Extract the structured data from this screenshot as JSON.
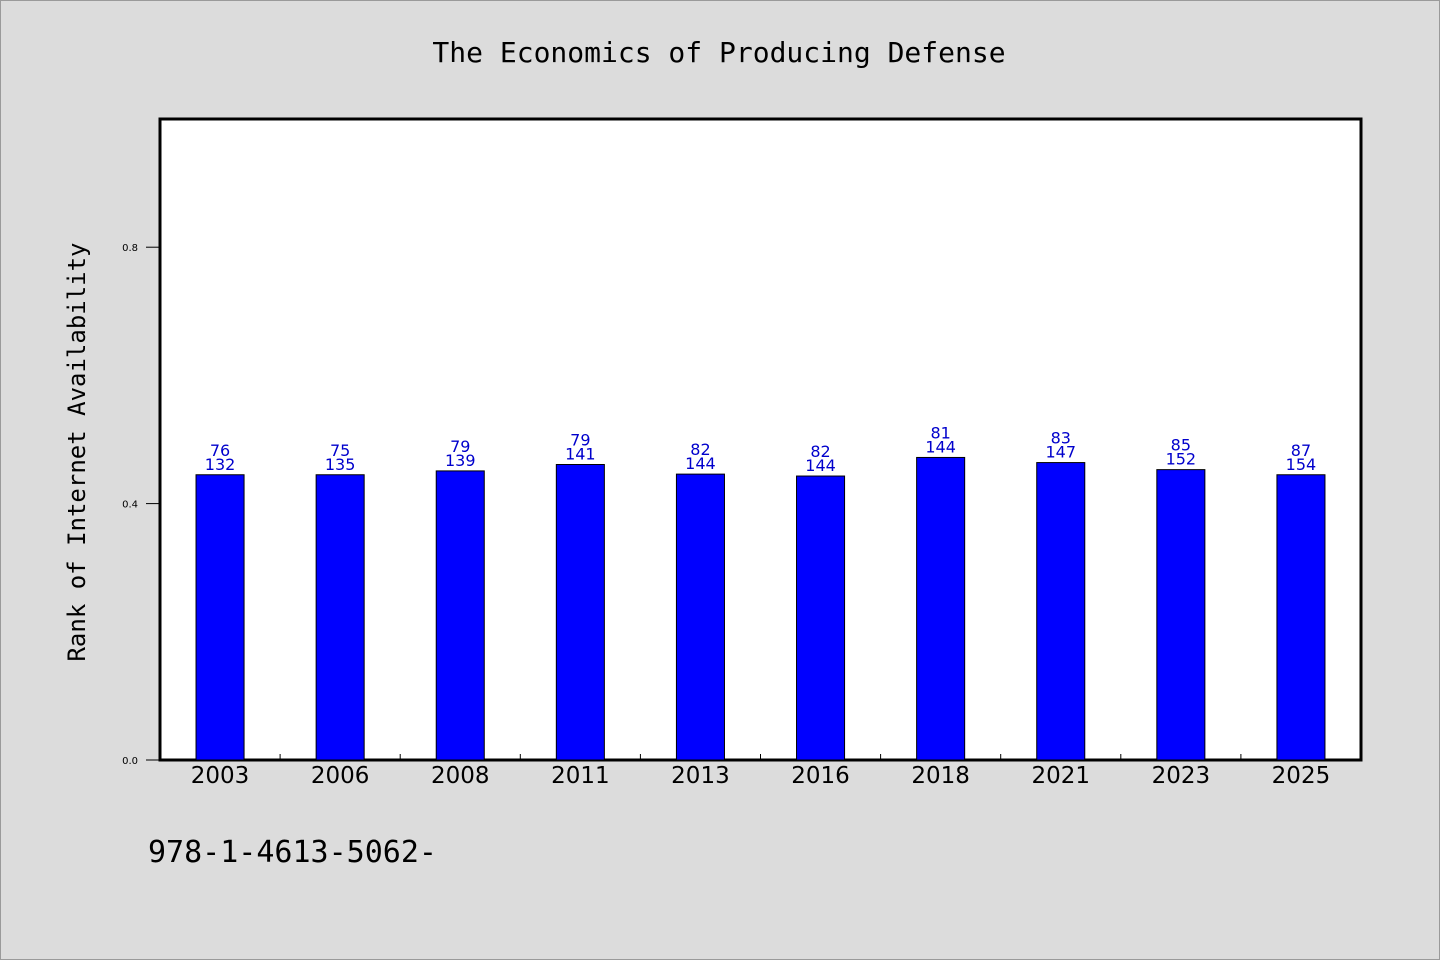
{
  "chart_data": {
    "type": "bar",
    "title": "The Economics of Producing Defense",
    "xlabel": "",
    "ylabel": "Rank of Internet Availability",
    "ylim": [
      0,
      1.0
    ],
    "yticks": [
      "0.0",
      "0.4",
      "0.8"
    ],
    "categories": [
      "2003",
      "2006",
      "2008",
      "2011",
      "2013",
      "2016",
      "2018",
      "2021",
      "2023",
      "2025"
    ],
    "values": [
      0.445,
      0.445,
      0.451,
      0.461,
      0.446,
      0.443,
      0.472,
      0.464,
      0.453,
      0.445
    ],
    "labels_top": [
      "76",
      "75",
      "79",
      "79",
      "82",
      "82",
      "81",
      "83",
      "85",
      "87"
    ],
    "labels_bottom": [
      "132",
      "135",
      "139",
      "141",
      "144",
      "144",
      "144",
      "147",
      "152",
      "154"
    ],
    "bar_color": "#0000ff",
    "label_color": "#0000cc",
    "grid": false,
    "legend": "none"
  },
  "footer": {
    "text": "978-1-4613-5062-"
  }
}
